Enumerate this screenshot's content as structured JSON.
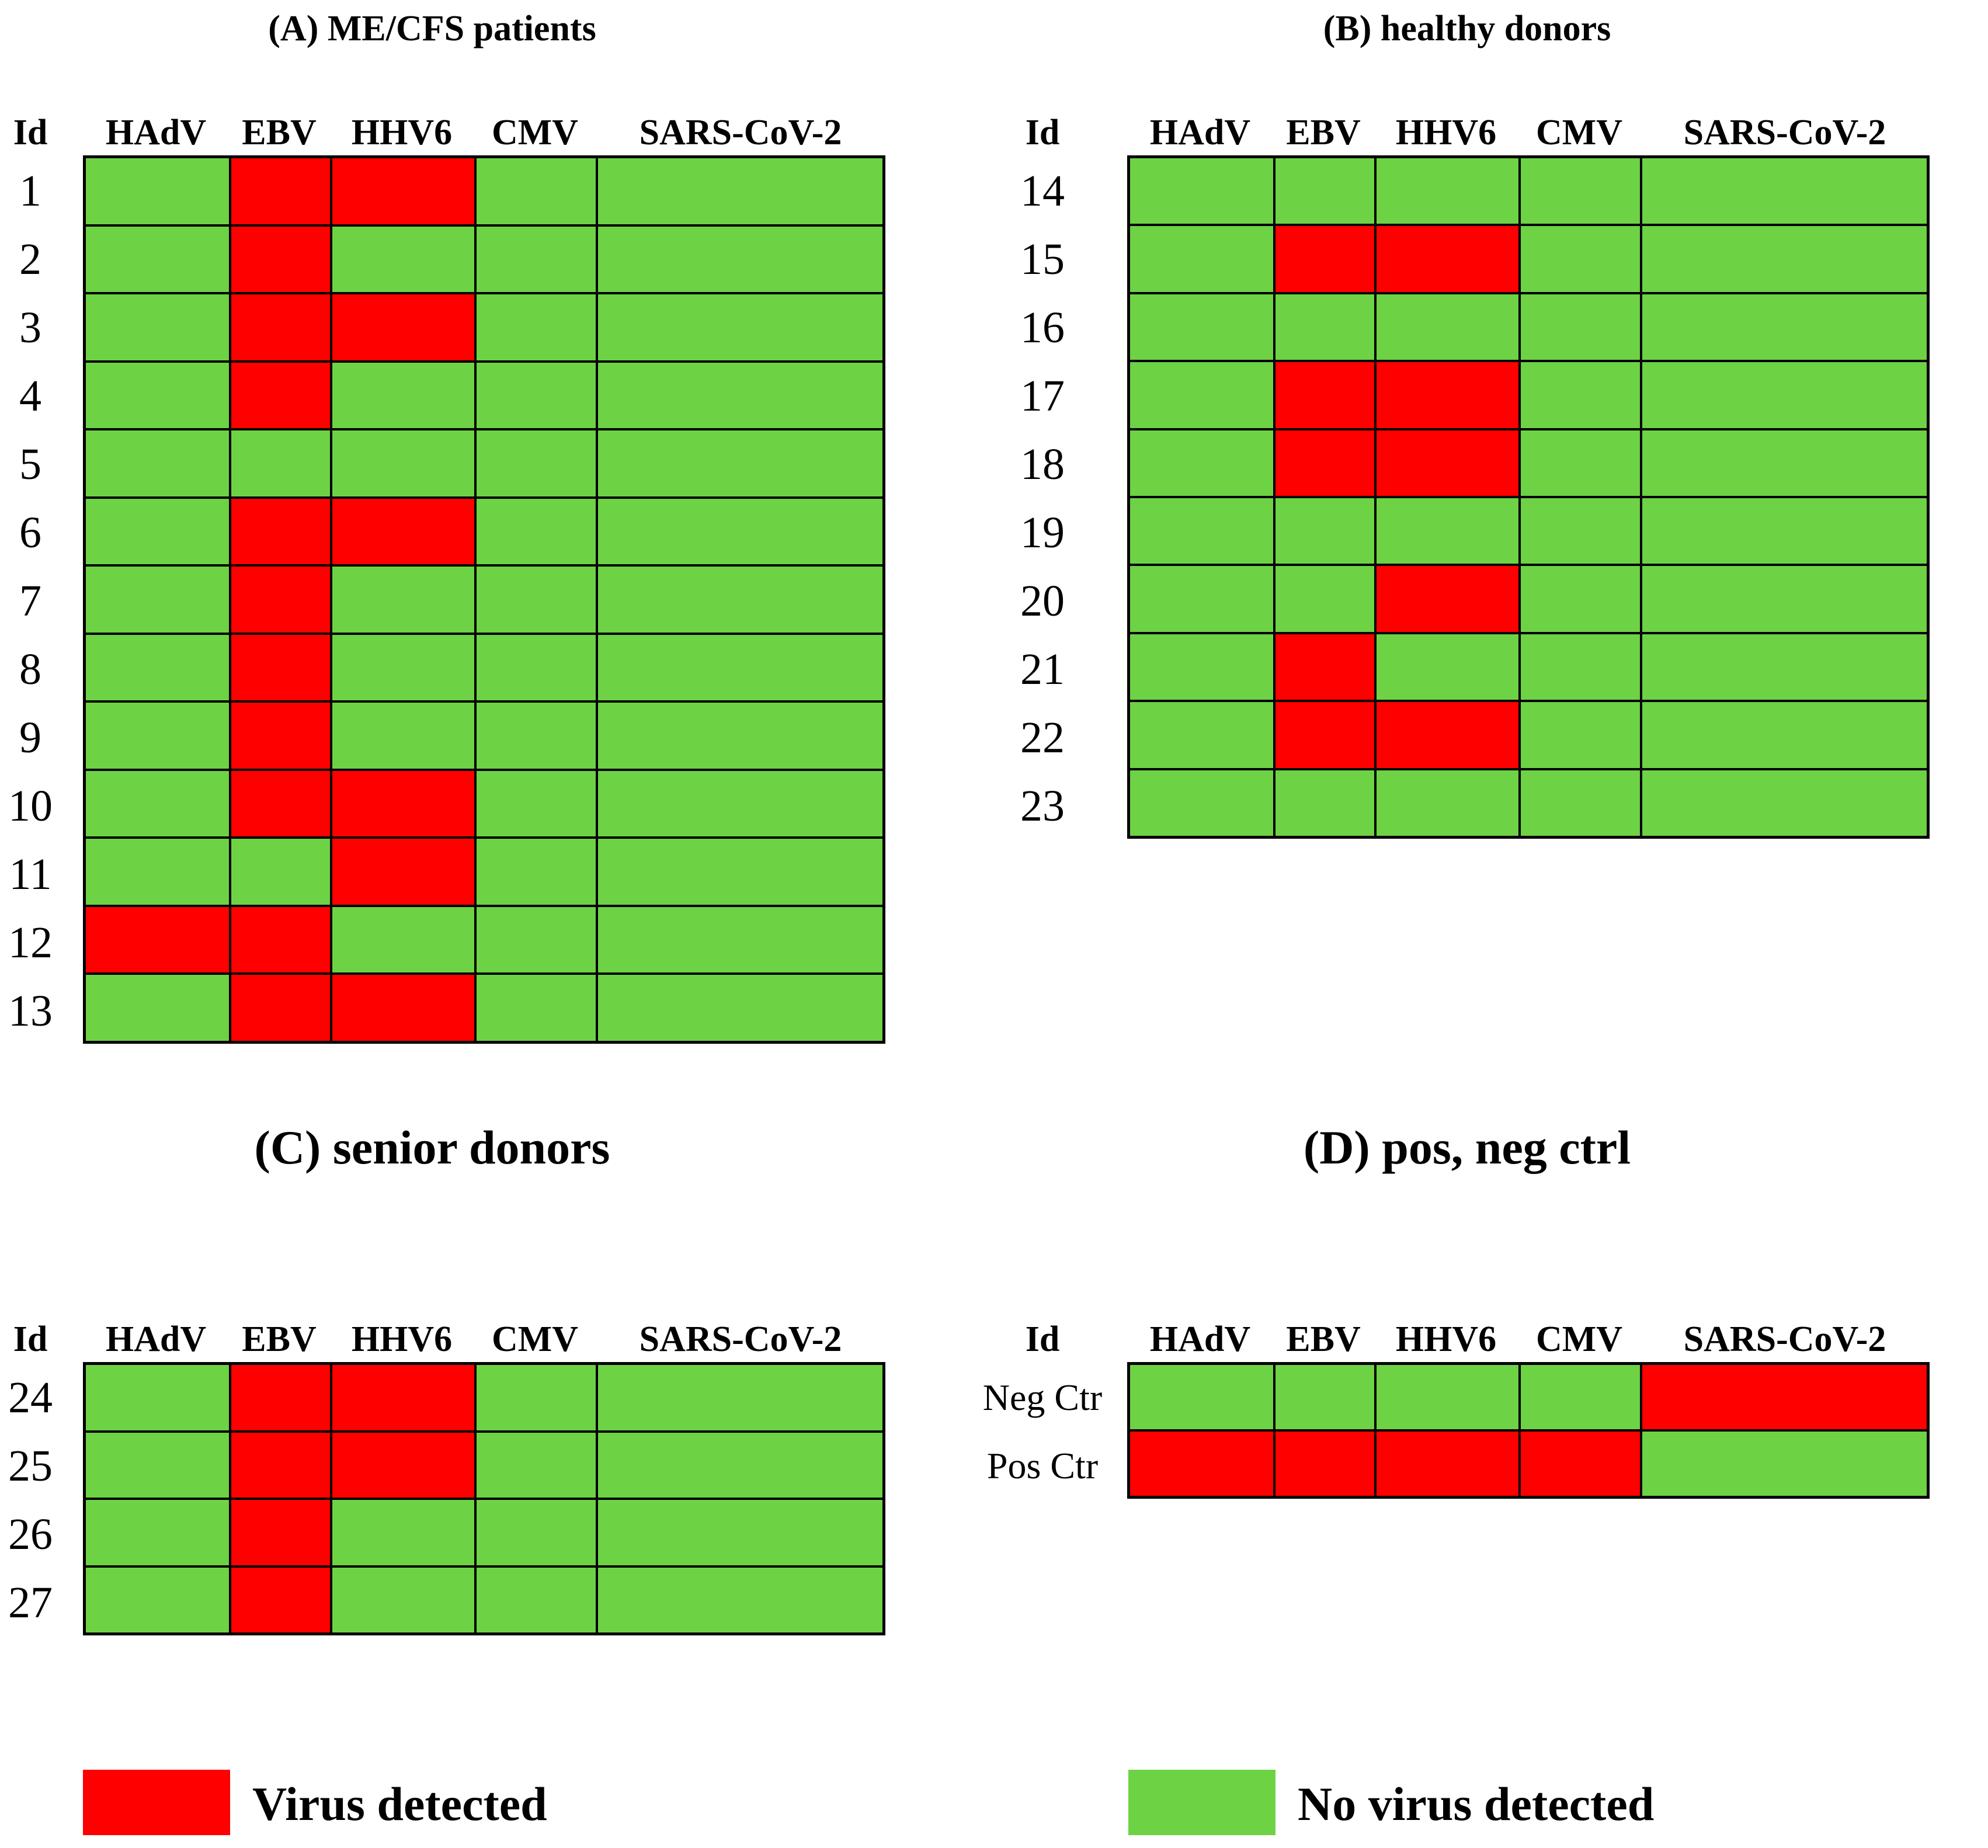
{
  "colors": {
    "virus_detected": "#ff0000",
    "no_virus_detected": "#6ed245"
  },
  "chart_data": [
    {
      "type": "heatmap",
      "title": "(A) ME/CFS patients",
      "id_header": "Id",
      "columns": [
        "HAdV",
        "EBV",
        "HHV6",
        "CMV",
        "SARS-CoV-2"
      ],
      "rows": [
        "1",
        "2",
        "3",
        "4",
        "5",
        "6",
        "7",
        "8",
        "9",
        "10",
        "11",
        "12",
        "13"
      ],
      "values": [
        [
          0,
          1,
          1,
          0,
          0
        ],
        [
          0,
          1,
          0,
          0,
          0
        ],
        [
          0,
          1,
          1,
          0,
          0
        ],
        [
          0,
          1,
          0,
          0,
          0
        ],
        [
          0,
          0,
          0,
          0,
          0
        ],
        [
          0,
          1,
          1,
          0,
          0
        ],
        [
          0,
          1,
          0,
          0,
          0
        ],
        [
          0,
          1,
          0,
          0,
          0
        ],
        [
          0,
          1,
          0,
          0,
          0
        ],
        [
          0,
          1,
          1,
          0,
          0
        ],
        [
          0,
          0,
          1,
          0,
          0
        ],
        [
          1,
          1,
          0,
          0,
          0
        ],
        [
          0,
          1,
          1,
          0,
          0
        ]
      ]
    },
    {
      "type": "heatmap",
      "title": "(B) healthy donors",
      "id_header": "Id",
      "columns": [
        "HAdV",
        "EBV",
        "HHV6",
        "CMV",
        "SARS-CoV-2"
      ],
      "rows": [
        "14",
        "15",
        "16",
        "17",
        "18",
        "19",
        "20",
        "21",
        "22",
        "23"
      ],
      "values": [
        [
          0,
          0,
          0,
          0,
          0
        ],
        [
          0,
          1,
          1,
          0,
          0
        ],
        [
          0,
          0,
          0,
          0,
          0
        ],
        [
          0,
          1,
          1,
          0,
          0
        ],
        [
          0,
          1,
          1,
          0,
          0
        ],
        [
          0,
          0,
          0,
          0,
          0
        ],
        [
          0,
          0,
          1,
          0,
          0
        ],
        [
          0,
          1,
          0,
          0,
          0
        ],
        [
          0,
          1,
          1,
          0,
          0
        ],
        [
          0,
          0,
          0,
          0,
          0
        ]
      ]
    },
    {
      "type": "heatmap",
      "title": "(C) senior donors",
      "id_header": "Id",
      "columns": [
        "HAdV",
        "EBV",
        "HHV6",
        "CMV",
        "SARS-CoV-2"
      ],
      "rows": [
        "24",
        "25",
        "26",
        "27"
      ],
      "values": [
        [
          0,
          1,
          1,
          0,
          0
        ],
        [
          0,
          1,
          1,
          0,
          0
        ],
        [
          0,
          1,
          0,
          0,
          0
        ],
        [
          0,
          1,
          0,
          0,
          0
        ]
      ]
    },
    {
      "type": "heatmap",
      "title": "(D) pos, neg ctrl",
      "id_header": "Id",
      "columns": [
        "HAdV",
        "EBV",
        "HHV6",
        "CMV",
        "SARS-CoV-2"
      ],
      "rows": [
        "Neg Ctr",
        "Pos Ctr"
      ],
      "values": [
        [
          0,
          0,
          0,
          0,
          1
        ],
        [
          1,
          1,
          1,
          1,
          0
        ]
      ]
    }
  ],
  "legend": [
    {
      "label": "Virus detected",
      "value": 1
    },
    {
      "label": "No virus detected",
      "value": 0
    }
  ]
}
